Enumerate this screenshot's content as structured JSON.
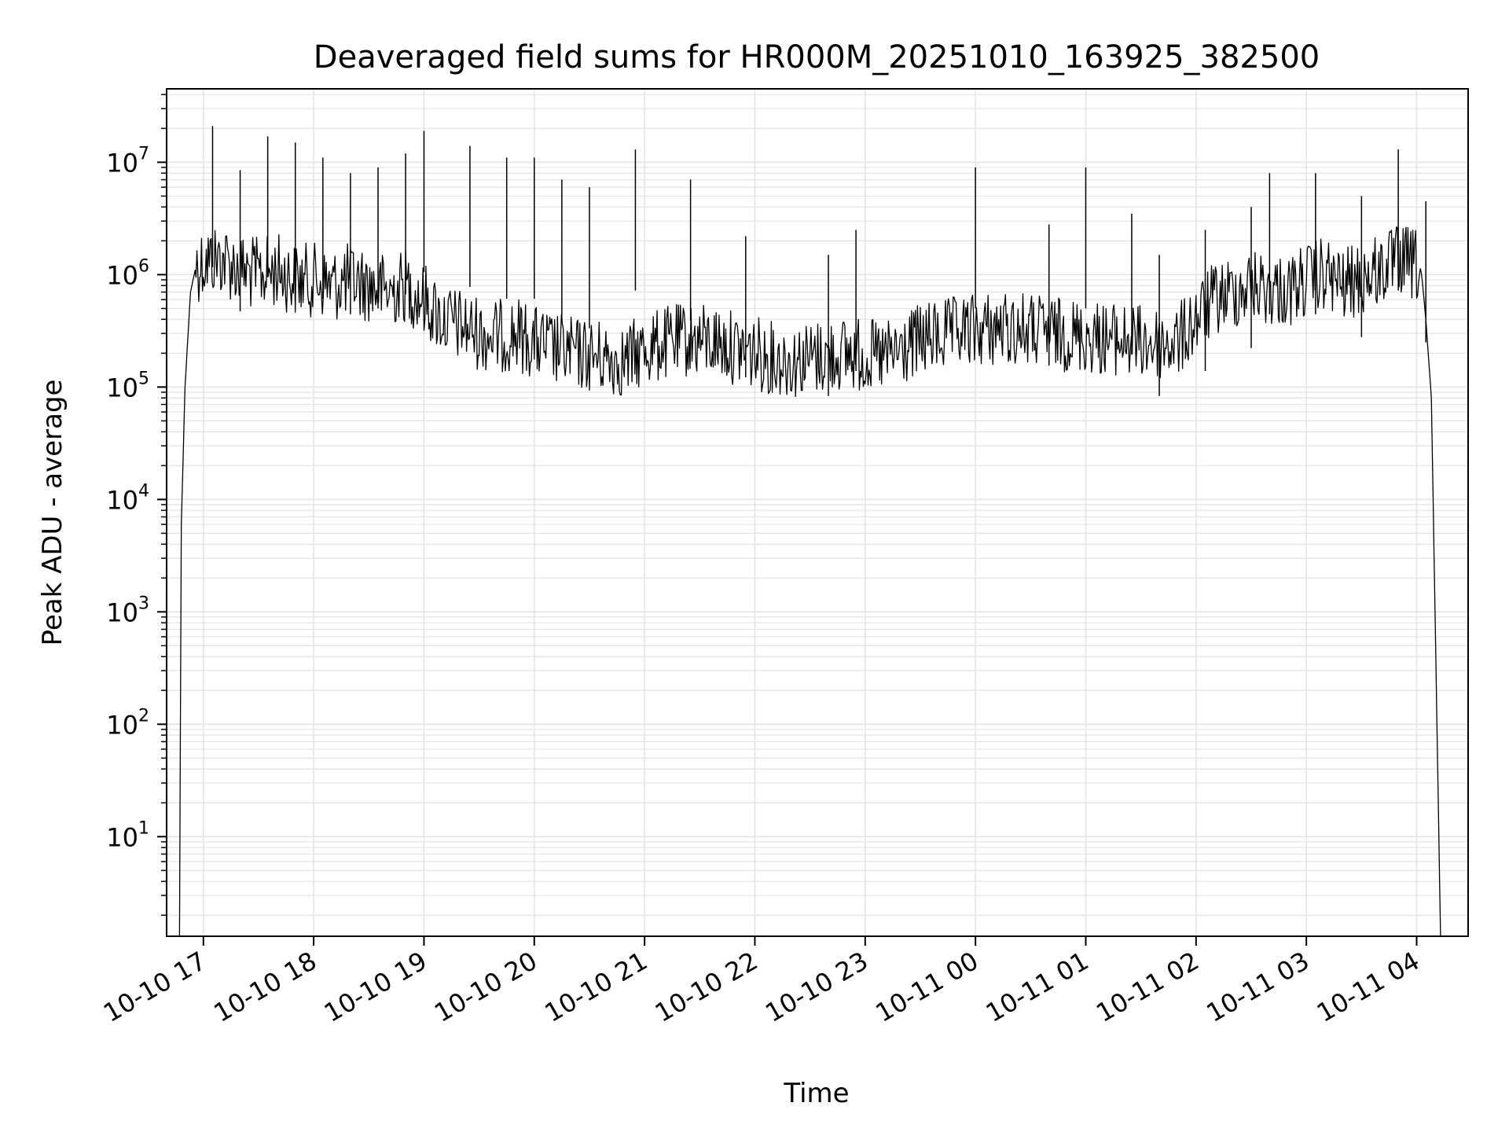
{
  "chart_data": {
    "type": "line",
    "title": "Deaveraged field sums for HR000M_20251010_163925_382500",
    "xlabel": "Time",
    "ylabel": "Peak ADU - average",
    "yscale": "log",
    "ylim": [
      1.3,
      45000000
    ],
    "xlim": [
      "2025-10-10 16:40",
      "2025-10-11 04:28"
    ],
    "grid": true,
    "line_color": "#000000",
    "grid_color": "#e3e3e3",
    "x_ticks": [
      {
        "value": "2025-10-10 17:00",
        "label": "10-10 17"
      },
      {
        "value": "2025-10-10 18:00",
        "label": "10-10 18"
      },
      {
        "value": "2025-10-10 19:00",
        "label": "10-10 19"
      },
      {
        "value": "2025-10-10 20:00",
        "label": "10-10 20"
      },
      {
        "value": "2025-10-10 21:00",
        "label": "10-10 21"
      },
      {
        "value": "2025-10-10 22:00",
        "label": "10-10 22"
      },
      {
        "value": "2025-10-10 23:00",
        "label": "10-10 23"
      },
      {
        "value": "2025-10-11 00:00",
        "label": "10-11 00"
      },
      {
        "value": "2025-10-11 01:00",
        "label": "10-11 01"
      },
      {
        "value": "2025-10-11 02:00",
        "label": "10-11 02"
      },
      {
        "value": "2025-10-11 03:00",
        "label": "10-11 03"
      },
      {
        "value": "2025-10-11 04:00",
        "label": "10-11 04"
      }
    ],
    "y_ticks": [
      {
        "value": 10,
        "base": "10",
        "exp": "1"
      },
      {
        "value": 100,
        "base": "10",
        "exp": "2"
      },
      {
        "value": 1000,
        "base": "10",
        "exp": "3"
      },
      {
        "value": 10000,
        "base": "10",
        "exp": "4"
      },
      {
        "value": 100000,
        "base": "10",
        "exp": "5"
      },
      {
        "value": 1000000,
        "base": "10",
        "exp": "6"
      },
      {
        "value": 10000000,
        "base": "10",
        "exp": "7"
      }
    ],
    "series": [
      {
        "x": [
          "2025-10-10 16:47",
          "2025-10-10 16:48",
          "2025-10-10 16:50",
          "2025-10-10 16:53",
          "2025-10-10 16:56",
          "2025-10-10 17:00",
          "2025-10-10 17:10",
          "2025-10-10 17:20",
          "2025-10-10 17:30",
          "2025-10-10 17:40",
          "2025-10-10 17:50",
          "2025-10-10 18:00",
          "2025-10-10 18:10",
          "2025-10-10 18:20",
          "2025-10-10 18:30",
          "2025-10-10 18:40",
          "2025-10-10 18:50",
          "2025-10-10 19:00",
          "2025-10-10 19:10",
          "2025-10-10 19:20",
          "2025-10-10 19:30",
          "2025-10-10 19:40",
          "2025-10-10 19:50",
          "2025-10-10 20:00",
          "2025-10-10 20:10",
          "2025-10-10 20:20",
          "2025-10-10 20:30",
          "2025-10-10 20:40",
          "2025-10-10 20:50",
          "2025-10-10 21:00",
          "2025-10-10 21:10",
          "2025-10-10 21:20",
          "2025-10-10 21:30",
          "2025-10-10 21:40",
          "2025-10-10 21:50",
          "2025-10-10 22:00",
          "2025-10-10 22:10",
          "2025-10-10 22:20",
          "2025-10-10 22:30",
          "2025-10-10 22:40",
          "2025-10-10 22:50",
          "2025-10-10 23:00",
          "2025-10-10 23:10",
          "2025-10-10 23:20",
          "2025-10-10 23:30",
          "2025-10-10 23:40",
          "2025-10-10 23:50",
          "2025-10-11 00:00",
          "2025-10-11 00:10",
          "2025-10-11 00:20",
          "2025-10-11 00:30",
          "2025-10-11 00:40",
          "2025-10-11 00:50",
          "2025-10-11 01:00",
          "2025-10-11 01:10",
          "2025-10-11 01:20",
          "2025-10-11 01:30",
          "2025-10-11 01:40",
          "2025-10-11 01:50",
          "2025-10-11 02:00",
          "2025-10-11 02:10",
          "2025-10-11 02:20",
          "2025-10-11 02:30",
          "2025-10-11 02:40",
          "2025-10-11 02:50",
          "2025-10-11 03:00",
          "2025-10-11 03:10",
          "2025-10-11 03:20",
          "2025-10-11 03:30",
          "2025-10-11 03:40",
          "2025-10-11 03:50",
          "2025-10-11 04:00",
          "2025-10-11 04:03",
          "2025-10-11 04:05",
          "2025-10-11 04:08",
          "2025-10-11 04:10",
          "2025-10-11 04:13"
        ],
        "y": [
          1,
          6000,
          100000,
          700000,
          1200000,
          1300000,
          1400000,
          1100000,
          1000000,
          1100000,
          900000,
          900000,
          800000,
          900000,
          800000,
          700000,
          800000,
          600000,
          400000,
          350000,
          300000,
          280000,
          300000,
          250000,
          220000,
          200000,
          190000,
          180000,
          170000,
          220000,
          240000,
          260000,
          260000,
          250000,
          220000,
          200000,
          180000,
          170000,
          180000,
          190000,
          200000,
          190000,
          180000,
          210000,
          260000,
          280000,
          300000,
          320000,
          330000,
          330000,
          320000,
          300000,
          290000,
          280000,
          270000,
          260000,
          250000,
          240000,
          250000,
          400000,
          600000,
          700000,
          800000,
          750000,
          700000,
          900000,
          1000000,
          800000,
          900000,
          1100000,
          1300000,
          1200000,
          900000,
          400000,
          80000,
          1000,
          1
        ]
      }
    ],
    "spikes": [
      {
        "x": "2025-10-10 17:05",
        "y": 21000000
      },
      {
        "x": "2025-10-10 17:20",
        "y": 8500000
      },
      {
        "x": "2025-10-10 17:35",
        "y": 17000000
      },
      {
        "x": "2025-10-10 17:50",
        "y": 15000000
      },
      {
        "x": "2025-10-10 18:05",
        "y": 11000000
      },
      {
        "x": "2025-10-10 18:20",
        "y": 8000000
      },
      {
        "x": "2025-10-10 18:35",
        "y": 9000000
      },
      {
        "x": "2025-10-10 18:50",
        "y": 12000000
      },
      {
        "x": "2025-10-10 19:00",
        "y": 19000000
      },
      {
        "x": "2025-10-10 19:25",
        "y": 14000000
      },
      {
        "x": "2025-10-10 19:45",
        "y": 11000000
      },
      {
        "x": "2025-10-10 20:00",
        "y": 11000000
      },
      {
        "x": "2025-10-10 20:15",
        "y": 7000000
      },
      {
        "x": "2025-10-10 20:30",
        "y": 6000000
      },
      {
        "x": "2025-10-10 20:55",
        "y": 13000000
      },
      {
        "x": "2025-10-10 21:25",
        "y": 7000000
      },
      {
        "x": "2025-10-10 21:55",
        "y": 2200000
      },
      {
        "x": "2025-10-10 22:40",
        "y": 1500000
      },
      {
        "x": "2025-10-10 22:55",
        "y": 2500000
      },
      {
        "x": "2025-10-11 00:00",
        "y": 9000000
      },
      {
        "x": "2025-10-11 00:40",
        "y": 2800000
      },
      {
        "x": "2025-10-11 01:00",
        "y": 9000000
      },
      {
        "x": "2025-10-11 01:25",
        "y": 3500000
      },
      {
        "x": "2025-10-11 01:40",
        "y": 1500000
      },
      {
        "x": "2025-10-11 02:05",
        "y": 2500000
      },
      {
        "x": "2025-10-11 02:30",
        "y": 4000000
      },
      {
        "x": "2025-10-11 02:40",
        "y": 8000000
      },
      {
        "x": "2025-10-11 03:05",
        "y": 8000000
      },
      {
        "x": "2025-10-11 03:30",
        "y": 5000000
      },
      {
        "x": "2025-10-11 03:50",
        "y": 13000000
      },
      {
        "x": "2025-10-11 04:05",
        "y": 4500000
      }
    ]
  }
}
